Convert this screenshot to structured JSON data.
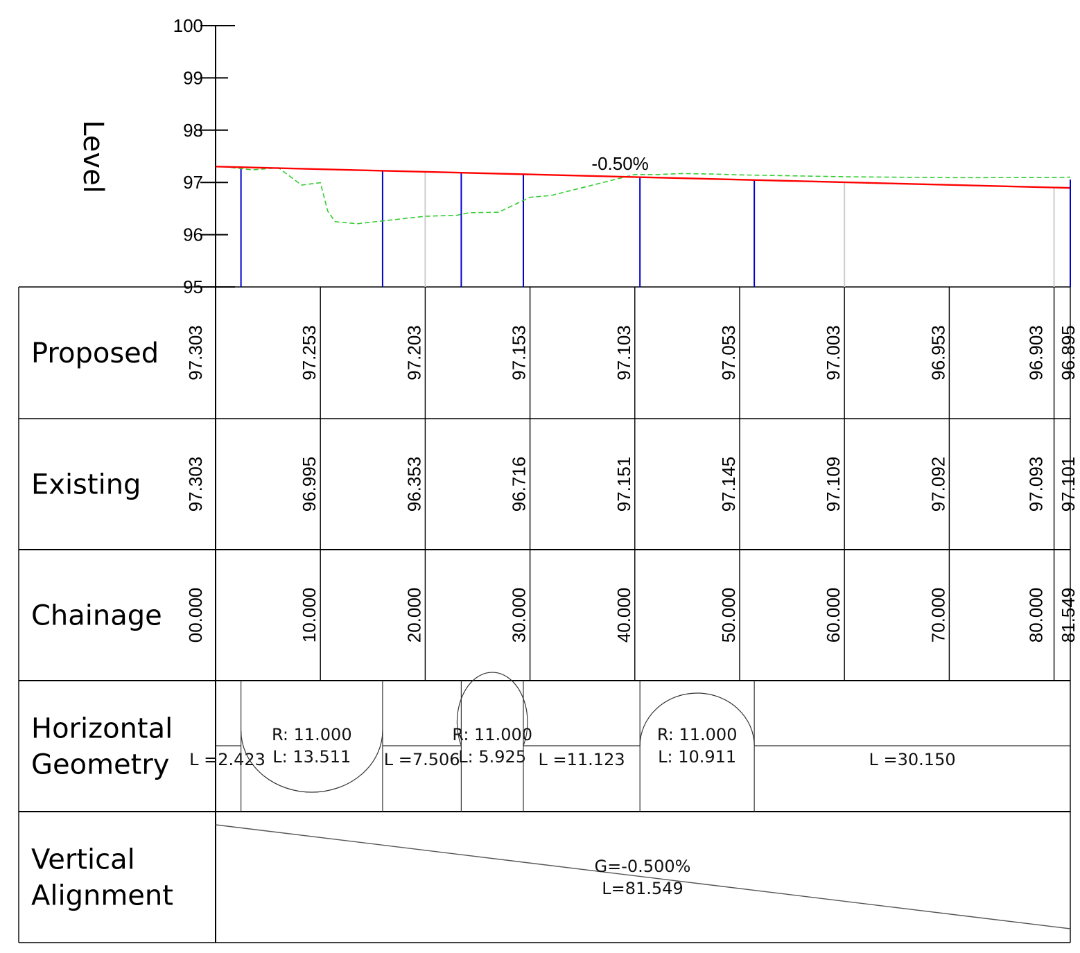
{
  "chart_data": {
    "type": "line",
    "ylabel": "Level",
    "ylim": [
      95,
      100
    ],
    "y_ticks": [
      "100",
      "99",
      "98",
      "97",
      "96",
      "95"
    ],
    "xlim": [
      0,
      81.549
    ],
    "grade_label": "-0.50%",
    "colors": {
      "proposed": "#ff0000",
      "existing": "#33cc33",
      "station_major": "#0000cc",
      "station_minor": "#cccccc",
      "grid": "#000000"
    },
    "proposed_line": {
      "x": [
        0,
        81.549
      ],
      "y": [
        97.303,
        96.895
      ]
    },
    "existing_line": {
      "x": [
        0,
        0.8,
        3.5,
        6.0,
        8.2,
        10.0,
        10.7,
        11.4,
        13.5,
        20.0,
        23.0,
        24.2,
        27.0,
        30.0,
        32.0,
        35.0,
        40.0,
        42.0,
        44.5,
        47.5,
        50.0,
        60.0,
        70.0,
        80.0,
        81.549
      ],
      "y": [
        97.303,
        97.3,
        97.24,
        97.28,
        96.95,
        96.995,
        96.45,
        96.25,
        96.21,
        96.353,
        96.37,
        96.42,
        96.43,
        96.716,
        96.75,
        96.9,
        97.151,
        97.15,
        97.17,
        97.16,
        97.145,
        97.109,
        97.092,
        97.093,
        97.101
      ]
    },
    "major_stations": [
      2.423,
      15.934,
      23.44,
      29.365,
      40.488,
      51.399,
      81.549
    ],
    "minor_stations": [
      0,
      20.0,
      60.0,
      80.0
    ]
  },
  "band_table": {
    "stations": [
      0,
      10,
      20,
      30,
      40,
      50,
      60,
      70,
      80,
      81.549
    ],
    "rows": [
      {
        "label_lines": [
          "Proposed"
        ],
        "values": [
          "97.303",
          "97.253",
          "97.203",
          "97.153",
          "97.103",
          "97.053",
          "97.003",
          "96.953",
          "96.903",
          "96.895"
        ]
      },
      {
        "label_lines": [
          "Existing"
        ],
        "values": [
          "97.303",
          "96.995",
          "96.353",
          "96.716",
          "97.151",
          "97.145",
          "97.109",
          "97.092",
          "97.093",
          "97.101"
        ]
      },
      {
        "label_lines": [
          "Chainage"
        ],
        "values": [
          "00.000",
          "10.000",
          "20.000",
          "30.000",
          "40.000",
          "50.000",
          "60.000",
          "70.000",
          "80.000",
          "81.549"
        ]
      },
      {
        "label_lines": [
          "Horizontal",
          "Geometry"
        ]
      },
      {
        "label_lines": [
          "Vertical",
          "Alignment"
        ]
      }
    ]
  },
  "horizontal_geometry": [
    {
      "type": "line",
      "start": 0,
      "end": 2.423,
      "length": "L =2.423"
    },
    {
      "type": "curve",
      "start": 2.423,
      "end": 15.934,
      "radius": "R: 11.000",
      "length": "L: 13.511",
      "direction": "down"
    },
    {
      "type": "line",
      "start": 15.934,
      "end": 23.44,
      "length": "L =7.506"
    },
    {
      "type": "curve",
      "start": 23.44,
      "end": 29.365,
      "radius": "R: 11.000",
      "length": "L: 5.925",
      "direction": "up"
    },
    {
      "type": "line",
      "start": 29.365,
      "end": 40.488,
      "length": "L =11.123"
    },
    {
      "type": "curve",
      "start": 40.488,
      "end": 51.399,
      "radius": "R: 11.000",
      "length": "L: 10.911",
      "direction": "up"
    },
    {
      "type": "line",
      "start": 51.399,
      "end": 81.549,
      "length": "L =30.150"
    }
  ],
  "vertical_alignment": {
    "grade": "G=-0.500%",
    "length": "L=81.549"
  }
}
